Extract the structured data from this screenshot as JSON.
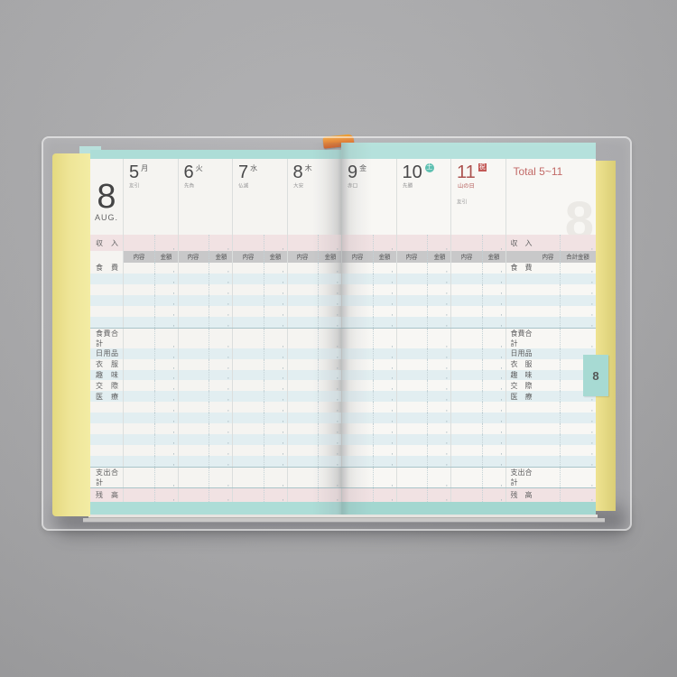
{
  "month": {
    "number": "8",
    "name": "AUG.",
    "tab": "8",
    "watermark": "8"
  },
  "header": {
    "total_label": "Total 5~11"
  },
  "columns": {
    "content": "内容",
    "amount": "金額",
    "total_amount": "合計金額"
  },
  "amount_separator": ",",
  "days": {
    "left": [
      {
        "date": "5",
        "weekday": "月",
        "rokuyo": "友引",
        "style": "weekday"
      },
      {
        "date": "6",
        "weekday": "火",
        "rokuyo": "先負",
        "style": "weekday"
      },
      {
        "date": "7",
        "weekday": "水",
        "rokuyo": "仏滅",
        "style": "weekday"
      },
      {
        "date": "8",
        "weekday": "木",
        "rokuyo": "大安",
        "style": "weekday"
      }
    ],
    "right": [
      {
        "date": "9",
        "weekday": "金",
        "rokuyo": "赤口",
        "style": "weekday"
      },
      {
        "date": "10",
        "weekday": "土",
        "rokuyo": "先勝",
        "style": "saturday"
      },
      {
        "date": "11",
        "weekday": "祝",
        "rokuyo": "友引",
        "holiday": "山の日",
        "style": "holiday"
      }
    ]
  },
  "row_labels": {
    "income": "収入",
    "food": "食費",
    "food_total": "食費合計",
    "daily_goods": "日用品",
    "clothing": "衣服",
    "hobby": "趣味",
    "social": "交際",
    "medical": "医療",
    "expense_total": "支出合計",
    "balance": "残高"
  },
  "colors": {
    "band_teal": "#a9dcd5",
    "band_pink": "#f2e2e2",
    "band_gray": "#c6c6c6",
    "stripe_blue": "#e2eff1",
    "holiday_red": "#b0524e",
    "saturday_teal": "#56bead",
    "page_edge_yellow": "#efe591",
    "tab_teal": "#a3d9d1"
  }
}
